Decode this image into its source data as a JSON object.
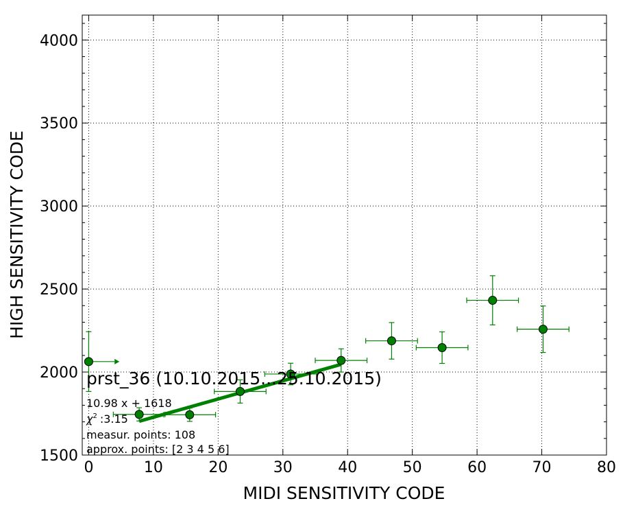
{
  "chart_data": {
    "type": "scatter",
    "title": "",
    "xlabel": "MIDI SENSITIVITY CODE",
    "ylabel": "HIGH SENSITIVITY CODE",
    "xlim": [
      -1,
      80
    ],
    "ylim": [
      1500,
      4150
    ],
    "x_ticks": [
      "0",
      "10",
      "20",
      "30",
      "40",
      "50",
      "60",
      "70",
      "80"
    ],
    "y_ticks": [
      "1500",
      "2000",
      "2500",
      "3000",
      "3500",
      "4000"
    ],
    "grid": true,
    "marker_color": "#008000",
    "fit_color": "#008000",
    "points": [
      {
        "x": 0.0,
        "y": 2063,
        "xerr": 0,
        "yerr": 180,
        "xerr_right_arrow": 4
      },
      {
        "x": 7.8,
        "y": 1745,
        "xerr": 4,
        "yerr": 40
      },
      {
        "x": 15.6,
        "y": 1743,
        "xerr": 4,
        "yerr": 40
      },
      {
        "x": 23.4,
        "y": 1883,
        "xerr": 4,
        "yerr": 70
      },
      {
        "x": 31.2,
        "y": 1988,
        "xerr": 4,
        "yerr": 65
      },
      {
        "x": 39.0,
        "y": 2070,
        "xerr": 4,
        "yerr": 70
      },
      {
        "x": 46.8,
        "y": 2188,
        "xerr": 4,
        "yerr": 110
      },
      {
        "x": 54.6,
        "y": 2147,
        "xerr": 4,
        "yerr": 95
      },
      {
        "x": 62.4,
        "y": 2432,
        "xerr": 4,
        "yerr": 148
      },
      {
        "x": 70.2,
        "y": 2258,
        "xerr": 4,
        "yerr": 140
      }
    ],
    "fit_line": {
      "slope": 10.98,
      "intercept": 1618,
      "x_start": 7.8,
      "x_end": 39.0
    },
    "annotations": {
      "title": "prst_36 (10.10.2015...25.10.2015)",
      "equation": "10.98 x + 1618",
      "chi2_symbol": "χ",
      "chi2_exp": "2",
      "chi2_value": ":3.15",
      "measured": "measur. points: 108",
      "approx": "approx. points: [2 3 4 5 6]"
    }
  }
}
